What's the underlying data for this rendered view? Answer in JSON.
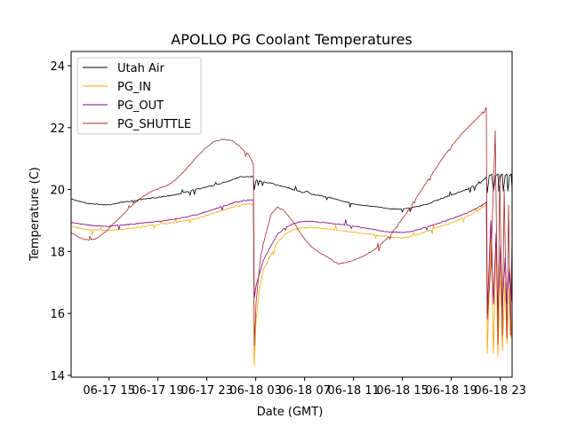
{
  "chart_data": {
    "type": "line",
    "title": "APOLLO PG Coolant Temperatures",
    "xlabel": "Date (GMT)",
    "ylabel": "Temperature (C)",
    "x_units": "hours since 06-17 00:00 GMT",
    "xlim": [
      11.9,
      47.97
    ],
    "ylim": [
      13.94,
      24.46
    ],
    "xticks": [
      {
        "value": 15,
        "label": "06-17 15"
      },
      {
        "value": 19,
        "label": "06-17 19"
      },
      {
        "value": 23,
        "label": "06-17 23"
      },
      {
        "value": 27,
        "label": "06-18 03"
      },
      {
        "value": 31,
        "label": "06-18 07"
      },
      {
        "value": 35,
        "label": "06-18 11"
      },
      {
        "value": 39,
        "label": "06-18 15"
      },
      {
        "value": 43,
        "label": "06-18 19"
      },
      {
        "value": 47,
        "label": "06-18 23"
      }
    ],
    "yticks": [
      {
        "value": 14,
        "label": "14"
      },
      {
        "value": 16,
        "label": "16"
      },
      {
        "value": 18,
        "label": "18"
      },
      {
        "value": 20,
        "label": "20"
      },
      {
        "value": 22,
        "label": "22"
      },
      {
        "value": 24,
        "label": "24"
      }
    ],
    "grid": false,
    "legend": "top-left",
    "series": [
      {
        "name": "Utah Air",
        "color": "#000000",
        "points": [
          [
            11.9,
            19.69
          ],
          [
            13.35,
            19.55
          ],
          [
            14.81,
            19.5
          ],
          [
            16.26,
            19.6
          ],
          [
            17.72,
            19.68
          ],
          [
            19.17,
            19.76
          ],
          [
            20.63,
            19.85
          ],
          [
            22.08,
            20.0
          ],
          [
            23.54,
            20.13
          ],
          [
            24.99,
            20.3
          ],
          [
            25.72,
            20.42
          ],
          [
            26.81,
            20.42
          ],
          [
            26.88,
            20.0
          ],
          [
            27.03,
            20.3
          ],
          [
            28.26,
            20.2
          ],
          [
            29.35,
            20.1
          ],
          [
            30.08,
            20.0
          ],
          [
            30.81,
            19.9
          ],
          [
            31.2,
            19.95
          ],
          [
            31.54,
            19.85
          ],
          [
            32.99,
            19.75
          ],
          [
            34.45,
            19.6
          ],
          [
            35.17,
            19.52
          ],
          [
            36.63,
            19.45
          ],
          [
            38.08,
            19.38
          ],
          [
            38.81,
            19.37
          ],
          [
            40.26,
            19.45
          ],
          [
            40.99,
            19.52
          ],
          [
            42.45,
            19.75
          ],
          [
            43.9,
            19.95
          ],
          [
            45.35,
            20.2
          ],
          [
            45.86,
            20.4
          ],
          [
            45.94,
            19.9
          ],
          [
            46.1,
            20.45
          ],
          [
            46.3,
            20.5
          ],
          [
            46.45,
            19.95
          ],
          [
            46.6,
            20.45
          ],
          [
            46.81,
            20.5
          ],
          [
            46.88,
            19.95
          ],
          [
            47.03,
            20.45
          ],
          [
            47.17,
            20.5
          ],
          [
            47.25,
            19.95
          ],
          [
            47.4,
            20.45
          ],
          [
            47.54,
            20.5
          ],
          [
            47.62,
            19.95
          ],
          [
            47.76,
            20.45
          ],
          [
            47.9,
            20.5
          ],
          [
            47.97,
            20.0
          ]
        ]
      },
      {
        "name": "PG_IN",
        "color": "#ffa500",
        "points": [
          [
            11.9,
            18.81
          ],
          [
            13.35,
            18.7
          ],
          [
            14.81,
            18.67
          ],
          [
            16.26,
            18.72
          ],
          [
            17.72,
            18.8
          ],
          [
            19.17,
            18.88
          ],
          [
            20.63,
            18.95
          ],
          [
            22.08,
            19.05
          ],
          [
            23.54,
            19.24
          ],
          [
            24.99,
            19.42
          ],
          [
            26.08,
            19.52
          ],
          [
            26.81,
            19.53
          ],
          [
            26.88,
            14.3
          ],
          [
            27.03,
            15.8
          ],
          [
            27.32,
            16.8
          ],
          [
            27.61,
            17.4
          ],
          [
            28.26,
            17.9
          ],
          [
            28.77,
            18.3
          ],
          [
            29.35,
            18.55
          ],
          [
            30.08,
            18.7
          ],
          [
            30.81,
            18.78
          ],
          [
            31.54,
            18.78
          ],
          [
            32.99,
            18.72
          ],
          [
            34.45,
            18.65
          ],
          [
            35.9,
            18.58
          ],
          [
            37.35,
            18.5
          ],
          [
            38.81,
            18.44
          ],
          [
            39.54,
            18.46
          ],
          [
            40.26,
            18.55
          ],
          [
            41.72,
            18.75
          ],
          [
            43.17,
            18.95
          ],
          [
            44.63,
            19.2
          ],
          [
            45.72,
            19.45
          ],
          [
            45.86,
            19.5
          ],
          [
            45.94,
            14.7
          ],
          [
            46.23,
            18.5
          ],
          [
            46.45,
            14.7
          ],
          [
            46.66,
            18.3
          ],
          [
            46.81,
            14.6
          ],
          [
            47.03,
            17.5
          ],
          [
            47.17,
            14.8
          ],
          [
            47.4,
            17.0
          ],
          [
            47.54,
            15.0
          ],
          [
            47.76,
            16.8
          ],
          [
            47.9,
            15.2
          ],
          [
            47.97,
            16.2
          ]
        ]
      },
      {
        "name": "PG_OUT",
        "color": "#800080",
        "points": [
          [
            11.9,
            18.93
          ],
          [
            13.35,
            18.85
          ],
          [
            14.81,
            18.81
          ],
          [
            16.26,
            18.86
          ],
          [
            17.72,
            18.92
          ],
          [
            19.17,
            18.98
          ],
          [
            20.63,
            19.06
          ],
          [
            22.08,
            19.18
          ],
          [
            23.54,
            19.36
          ],
          [
            24.99,
            19.55
          ],
          [
            26.08,
            19.65
          ],
          [
            26.81,
            19.67
          ],
          [
            26.88,
            16.5
          ],
          [
            27.03,
            16.9
          ],
          [
            27.32,
            17.3
          ],
          [
            27.61,
            17.7
          ],
          [
            28.26,
            18.2
          ],
          [
            28.77,
            18.55
          ],
          [
            29.35,
            18.75
          ],
          [
            30.08,
            18.9
          ],
          [
            30.81,
            18.96
          ],
          [
            31.54,
            18.98
          ],
          [
            32.99,
            18.92
          ],
          [
            34.45,
            18.85
          ],
          [
            35.9,
            18.76
          ],
          [
            37.35,
            18.66
          ],
          [
            38.81,
            18.61
          ],
          [
            39.54,
            18.63
          ],
          [
            40.26,
            18.7
          ],
          [
            41.72,
            18.88
          ],
          [
            43.17,
            19.08
          ],
          [
            44.63,
            19.3
          ],
          [
            45.72,
            19.55
          ],
          [
            45.86,
            19.6
          ],
          [
            45.94,
            16.0
          ],
          [
            46.23,
            19.0
          ],
          [
            46.45,
            16.3
          ],
          [
            46.66,
            18.6
          ],
          [
            46.81,
            16.0
          ],
          [
            47.03,
            18.2
          ],
          [
            47.17,
            16.2
          ],
          [
            47.4,
            17.8
          ],
          [
            47.54,
            16.3
          ],
          [
            47.76,
            17.5
          ],
          [
            47.9,
            16.4
          ],
          [
            47.97,
            17.2
          ]
        ]
      },
      {
        "name": "PG_SHUTTLE",
        "color": "#a52a2a",
        "points": [
          [
            11.9,
            18.61
          ],
          [
            12.63,
            18.44
          ],
          [
            13.35,
            18.36
          ],
          [
            14.08,
            18.44
          ],
          [
            14.81,
            18.67
          ],
          [
            15.54,
            18.96
          ],
          [
            16.26,
            19.24
          ],
          [
            16.99,
            19.53
          ],
          [
            17.72,
            19.76
          ],
          [
            18.45,
            19.93
          ],
          [
            19.17,
            20.05
          ],
          [
            19.9,
            20.16
          ],
          [
            20.63,
            20.39
          ],
          [
            21.35,
            20.68
          ],
          [
            22.08,
            21.02
          ],
          [
            22.81,
            21.31
          ],
          [
            23.54,
            21.54
          ],
          [
            24.26,
            21.63
          ],
          [
            24.99,
            21.59
          ],
          [
            25.72,
            21.39
          ],
          [
            26.45,
            21.11
          ],
          [
            26.81,
            20.82
          ],
          [
            26.88,
            14.95
          ],
          [
            27.03,
            16.38
          ],
          [
            27.32,
            17.52
          ],
          [
            27.61,
            18.24
          ],
          [
            27.9,
            18.67
          ],
          [
            28.26,
            19.2
          ],
          [
            28.77,
            19.44
          ],
          [
            29.35,
            19.3
          ],
          [
            30.08,
            18.95
          ],
          [
            30.81,
            18.5
          ],
          [
            31.54,
            18.15
          ],
          [
            32.26,
            17.95
          ],
          [
            32.99,
            17.78
          ],
          [
            33.72,
            17.6
          ],
          [
            34.45,
            17.64
          ],
          [
            35.17,
            17.75
          ],
          [
            35.9,
            17.87
          ],
          [
            36.63,
            18.04
          ],
          [
            37.35,
            18.27
          ],
          [
            38.08,
            18.56
          ],
          [
            38.81,
            18.96
          ],
          [
            39.54,
            19.36
          ],
          [
            40.26,
            19.82
          ],
          [
            40.99,
            20.25
          ],
          [
            41.72,
            20.68
          ],
          [
            42.45,
            21.11
          ],
          [
            43.17,
            21.48
          ],
          [
            43.9,
            21.82
          ],
          [
            44.63,
            22.11
          ],
          [
            45.35,
            22.4
          ],
          [
            45.86,
            22.65
          ],
          [
            45.94,
            15.8
          ],
          [
            46.23,
            17.5
          ],
          [
            46.59,
            21.9
          ],
          [
            46.81,
            15.0
          ],
          [
            46.95,
            20.5
          ],
          [
            47.17,
            15.3
          ],
          [
            47.32,
            20.0
          ],
          [
            47.54,
            15.2
          ],
          [
            47.68,
            19.5
          ],
          [
            47.83,
            15.3
          ],
          [
            47.97,
            18.5
          ]
        ]
      }
    ]
  }
}
